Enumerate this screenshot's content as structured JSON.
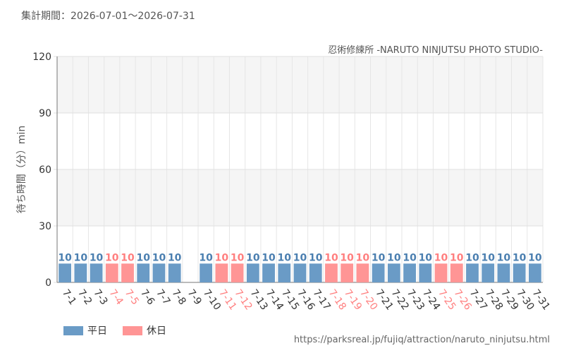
{
  "header": {
    "period": "集計期間：2026-07-01～2026-07-31",
    "subtitle": "忍術修練所 -NARUTO NINJUTSU PHOTO STUDIO-"
  },
  "footer": {
    "url": "https://parksreal.jp/fujiq/attraction/naruto_ninjutsu.html"
  },
  "colors": {
    "weekday": "#6a9bc6",
    "holiday": "#ff9595",
    "weekday_label": "#4b7fb0",
    "holiday_label": "#ff7f7f"
  },
  "chart_data": {
    "type": "bar",
    "title": "",
    "xlabel": "",
    "ylabel": "待ち時間（分）min",
    "ylim": [
      0,
      120
    ],
    "yticks": [
      0,
      30,
      60,
      90,
      120
    ],
    "grid": true,
    "legend_position": "bottom-left",
    "categories": [
      "7-1",
      "7-2",
      "7-3",
      "7-4",
      "7-5",
      "7-6",
      "7-7",
      "7-8",
      "7-9",
      "7-10",
      "7-11",
      "7-12",
      "7-13",
      "7-14",
      "7-15",
      "7-16",
      "7-17",
      "7-18",
      "7-19",
      "7-20",
      "7-21",
      "7-22",
      "7-23",
      "7-24",
      "7-25",
      "7-26",
      "7-27",
      "7-28",
      "7-29",
      "7-30",
      "7-31"
    ],
    "values": [
      10,
      10,
      10,
      10,
      10,
      10,
      10,
      10,
      null,
      10,
      10,
      10,
      10,
      10,
      10,
      10,
      10,
      10,
      10,
      10,
      10,
      10,
      10,
      10,
      10,
      10,
      10,
      10,
      10,
      10,
      10
    ],
    "day_type": [
      "weekday",
      "weekday",
      "weekday",
      "holiday",
      "holiday",
      "weekday",
      "weekday",
      "weekday",
      "weekday",
      "weekday",
      "holiday",
      "holiday",
      "weekday",
      "weekday",
      "weekday",
      "weekday",
      "weekday",
      "holiday",
      "holiday",
      "holiday",
      "weekday",
      "weekday",
      "weekday",
      "weekday",
      "holiday",
      "holiday",
      "weekday",
      "weekday",
      "weekday",
      "weekday",
      "weekday"
    ],
    "legend": [
      {
        "key": "weekday",
        "label": "平日"
      },
      {
        "key": "holiday",
        "label": "休日"
      }
    ]
  }
}
